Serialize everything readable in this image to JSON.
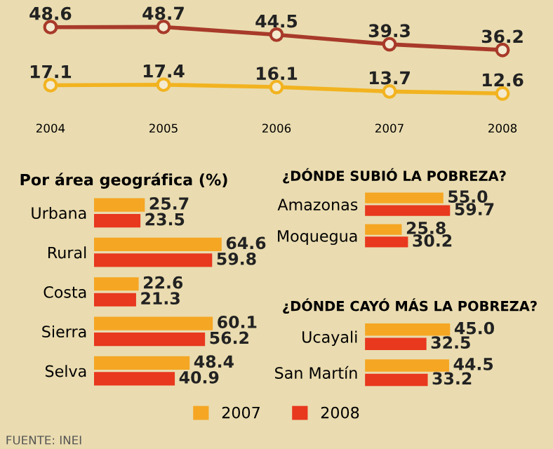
{
  "chart_data": [
    {
      "type": "line",
      "categories": [
        "2004",
        "2005",
        "2006",
        "2007",
        "2008"
      ],
      "data_labels": true,
      "marker": "circle",
      "tick_labels": "x",
      "grid": false,
      "legend": false,
      "series": [
        {
          "color": "#a83a2a",
          "values": [
            48.6,
            48.7,
            44.5,
            39.3,
            36.2
          ]
        },
        {
          "color": "#f2b320",
          "values": [
            17.1,
            17.4,
            16.1,
            13.7,
            12.6
          ]
        }
      ]
    },
    {
      "type": "bar",
      "orientation": "horizontal",
      "title": "Por área geográfica (%)",
      "categories": [
        "Urbana",
        "Rural",
        "Costa",
        "Sierra",
        "Selva"
      ],
      "data_labels": true,
      "tick_labels": "y",
      "legend": "bottom",
      "series": [
        {
          "name": "2007",
          "color": "#f5a623",
          "values": [
            25.7,
            64.6,
            22.6,
            60.1,
            48.4
          ]
        },
        {
          "name": "2008",
          "color": "#e8381e",
          "values": [
            23.5,
            59.8,
            21.3,
            56.2,
            40.9
          ]
        }
      ],
      "annotations": [
        "FUENTE: INEI"
      ]
    },
    {
      "type": "bar",
      "orientation": "horizontal",
      "title": "¿DÓNDE SUBIÓ LA POBREZA?",
      "categories": [
        "Amazonas",
        "Moquegua"
      ],
      "tick_labels": "y",
      "series": [
        {
          "color": "#f5a623",
          "values": [
            55.0,
            25.8
          ],
          "value_labels": [
            "55.0",
            "25.8"
          ]
        },
        {
          "color": "#e8381e",
          "values": [
            59.7,
            30.2
          ],
          "value_labels": [
            "59.7",
            "30.2"
          ]
        }
      ]
    },
    {
      "type": "bar",
      "orientation": "horizontal",
      "title": "¿DÓNDE CAYÓ MÁS LA POBREZA?",
      "categories": [
        "Ucayali",
        "San Martín"
      ],
      "tick_labels": "y",
      "series": [
        {
          "color": "#f5a623",
          "values": [
            45.0,
            44.5
          ],
          "value_labels": [
            "45.0",
            "44.5"
          ]
        },
        {
          "color": "#e8381e",
          "values": [
            32.5,
            33.2
          ],
          "value_labels": [
            "32.5",
            "33.2"
          ]
        }
      ]
    }
  ]
}
